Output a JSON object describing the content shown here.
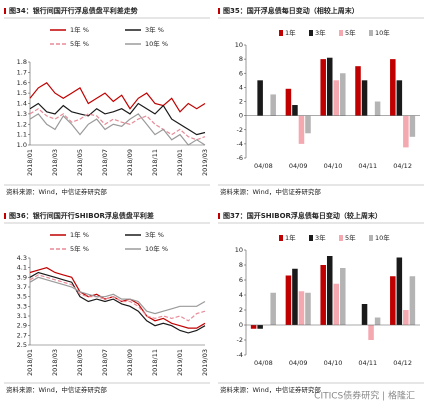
{
  "chart_data": [
    {
      "type": "line",
      "title": "图34：银行间国开行浮息债盘平利差走势",
      "source": "资料来源：Wind，中信证券研究部",
      "categories": [
        "2018/01",
        null,
        null,
        "2018/03",
        null,
        null,
        "2018/05",
        null,
        null,
        "2018/07",
        null,
        null,
        "2018/09",
        null,
        null,
        "2018/11",
        null,
        null,
        "2019/01",
        null,
        null,
        "2019/03"
      ],
      "series": [
        {
          "name": "1年 %",
          "color": "#c00000",
          "dashed": false,
          "values": [
            1.45,
            1.55,
            1.6,
            1.5,
            1.45,
            1.5,
            1.55,
            1.4,
            1.45,
            1.5,
            1.42,
            1.48,
            1.35,
            1.45,
            1.5,
            1.4,
            1.38,
            1.45,
            1.32,
            1.4,
            1.35,
            1.4
          ]
        },
        {
          "name": "3年 %",
          "color": "#1a1a1a",
          "dashed": false,
          "values": [
            1.35,
            1.4,
            1.32,
            1.3,
            1.38,
            1.32,
            1.3,
            1.28,
            1.35,
            1.3,
            1.32,
            1.35,
            1.3,
            1.4,
            1.35,
            1.3,
            1.38,
            1.25,
            1.2,
            1.15,
            1.1,
            1.12
          ]
        },
        {
          "name": "5年 %",
          "color": "#e88a96",
          "dashed": true,
          "values": [
            1.3,
            1.35,
            1.28,
            1.25,
            1.3,
            1.22,
            1.25,
            1.3,
            1.28,
            1.2,
            1.25,
            1.22,
            1.2,
            1.25,
            1.28,
            1.2,
            1.15,
            1.1,
            1.15,
            1.08,
            1.05,
            1.08
          ]
        },
        {
          "name": "10年 %",
          "color": "#9a9a9a",
          "dashed": false,
          "values": [
            1.25,
            1.3,
            1.2,
            1.15,
            1.28,
            1.2,
            1.1,
            1.2,
            1.25,
            1.15,
            1.2,
            1.18,
            1.25,
            1.3,
            1.2,
            1.1,
            1.15,
            1.05,
            1.1,
            1.0,
            1.05,
            1.0
          ]
        }
      ],
      "ylim": [
        1.0,
        1.8
      ],
      "yticks": [
        {
          "value": 1.0,
          "label": "1.0"
        },
        1.1,
        1.2,
        1.3,
        1.4,
        1.5,
        1.6,
        1.7,
        1.8
      ]
    },
    {
      "type": "bar",
      "title": "图35：国开浮息债每日变动（相较上周末）",
      "source": "资料来源：Wind，中信证券研究部",
      "categories": [
        "04/08",
        "04/09",
        "04/10",
        "04/11",
        "04/12"
      ],
      "series": [
        {
          "name": "1年",
          "color": "#c00000",
          "values": [
            0,
            3.8,
            8,
            7,
            8
          ]
        },
        {
          "name": "3年",
          "color": "#1a1a1a",
          "values": [
            5,
            1.5,
            8.2,
            5,
            5
          ]
        },
        {
          "name": "5年",
          "color": "#f4a8b0",
          "values": [
            0,
            -4,
            5,
            0,
            -4.5
          ]
        },
        {
          "name": "10年",
          "color": "#b4b4b4",
          "values": [
            3,
            -2.5,
            6,
            2,
            -3
          ]
        }
      ],
      "ylim": [
        -6,
        10
      ],
      "yticks": [
        -6,
        -4,
        -2,
        0,
        2,
        4,
        6,
        8,
        10
      ]
    },
    {
      "type": "line",
      "title": "图36：银行间国开行SHIBOR浮息债盘平利差",
      "source": "资料来源：Wind，中信证券研究部",
      "categories": [
        "2018/01",
        null,
        null,
        "2018/03",
        null,
        null,
        "2018/05",
        null,
        null,
        "2018/07",
        null,
        null,
        "2018/09",
        null,
        null,
        "2018/11",
        null,
        null,
        "2019/01",
        null,
        null,
        "2019/03"
      ],
      "series": [
        {
          "name": "1年 %",
          "color": "#c00000",
          "dashed": false,
          "values": [
            4.0,
            4.05,
            4.1,
            4.0,
            3.95,
            3.9,
            3.6,
            3.5,
            3.55,
            3.45,
            3.5,
            3.4,
            3.45,
            3.35,
            3.1,
            3.0,
            3.05,
            2.95,
            2.9,
            2.85,
            2.85,
            2.95
          ]
        },
        {
          "name": "3年 %",
          "color": "#1a1a1a",
          "dashed": false,
          "values": [
            3.9,
            4.0,
            3.95,
            3.9,
            3.85,
            3.8,
            3.5,
            3.4,
            3.45,
            3.4,
            3.45,
            3.35,
            3.3,
            3.2,
            3.0,
            2.9,
            2.95,
            2.9,
            2.8,
            2.75,
            2.8,
            2.9
          ]
        },
        {
          "name": "5年 %",
          "color": "#e88a96",
          "dashed": true,
          "values": [
            3.85,
            3.95,
            3.9,
            3.85,
            3.8,
            3.75,
            3.55,
            3.5,
            3.5,
            3.45,
            3.5,
            3.4,
            3.4,
            3.3,
            3.1,
            3.05,
            3.1,
            3.05,
            3.1,
            3.0,
            3.15,
            3.2
          ]
        },
        {
          "name": "10年 %",
          "color": "#9a9a9a",
          "dashed": false,
          "values": [
            3.8,
            3.9,
            3.85,
            3.8,
            3.75,
            3.7,
            3.6,
            3.55,
            3.5,
            3.5,
            3.55,
            3.45,
            3.45,
            3.4,
            3.2,
            3.15,
            3.2,
            3.25,
            3.3,
            3.3,
            3.3,
            3.4
          ]
        }
      ],
      "ylim": [
        2.5,
        4.3
      ],
      "yticks": [
        2.5,
        2.7,
        2.9,
        3.1,
        3.3,
        3.5,
        3.7,
        3.9,
        4.1,
        4.3
      ]
    },
    {
      "type": "bar",
      "title": "图37：国开SHIBOR浮息债每日变动（较上周末）",
      "source": "资料来源：Wind，中信证券研究部",
      "categories": [
        "04/08",
        "04/09",
        "04/10",
        "04/11",
        "04/12"
      ],
      "series": [
        {
          "name": "1年",
          "color": "#c00000",
          "values": [
            -0.5,
            6.6,
            8,
            0,
            6.5
          ]
        },
        {
          "name": "3年",
          "color": "#1a1a1a",
          "values": [
            -0.5,
            7.5,
            9.2,
            2.8,
            9
          ]
        },
        {
          "name": "5年",
          "color": "#f4a8b0",
          "values": [
            0,
            4.5,
            5.5,
            -2,
            2
          ]
        },
        {
          "name": "10年",
          "color": "#b4b4b4",
          "values": [
            4.3,
            4.3,
            7.6,
            1,
            6.5
          ]
        }
      ],
      "ylim": [
        -4,
        10
      ],
      "yticks": [
        -4,
        -2,
        0,
        2,
        4,
        6,
        8,
        10
      ]
    }
  ],
  "watermark": "CITICS债券研究 | 格隆汇"
}
